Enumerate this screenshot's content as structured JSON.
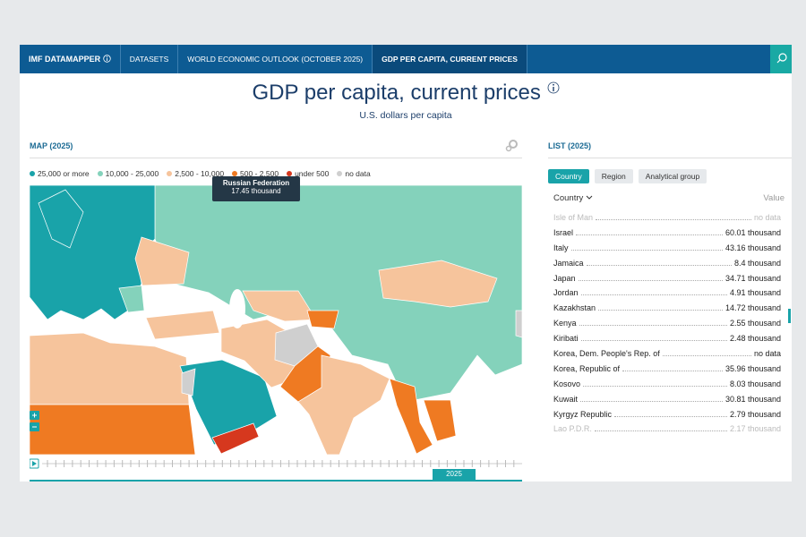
{
  "nav": {
    "brand": "IMF DATAMAPPER",
    "tabs": [
      "DATASETS",
      "WORLD ECONOMIC OUTLOOK (OCTOBER 2025)",
      "GDP PER CAPITA, CURRENT PRICES"
    ]
  },
  "header": {
    "title": "GDP per capita, current prices",
    "subtitle": "U.S. dollars per capita"
  },
  "map": {
    "heading": "MAP (2025)",
    "legend": [
      "25,000 or more",
      "10,000 - 25,000",
      "2,500 - 10,000",
      "500 - 2,500",
      "under 500",
      "no data"
    ],
    "tooltip": {
      "name": "Russian Federation",
      "value": "17.45 thousand"
    },
    "year": "2025"
  },
  "list": {
    "heading": "LIST (2025)",
    "filters": [
      "Country",
      "Region",
      "Analytical group"
    ],
    "columns": [
      "Country",
      "Value"
    ],
    "rows": [
      [
        "Isle of Man",
        "no data"
      ],
      [
        "Israel",
        "60.01 thousand"
      ],
      [
        "Italy",
        "43.16 thousand"
      ],
      [
        "Jamaica",
        "8.4 thousand"
      ],
      [
        "Japan",
        "34.71 thousand"
      ],
      [
        "Jordan",
        "4.91 thousand"
      ],
      [
        "Kazakhstan",
        "14.72 thousand"
      ],
      [
        "Kenya",
        "2.55 thousand"
      ],
      [
        "Kiribati",
        "2.48 thousand"
      ],
      [
        "Korea, Dem. People's Rep. of",
        "no data"
      ],
      [
        "Korea, Republic of",
        "35.96 thousand"
      ],
      [
        "Kosovo",
        "8.03 thousand"
      ],
      [
        "Kuwait",
        "30.81 thousand"
      ],
      [
        "Kyrgyz Republic",
        "2.79 thousand"
      ],
      [
        "Lao P.D.R.",
        "2.17 thousand"
      ]
    ]
  }
}
